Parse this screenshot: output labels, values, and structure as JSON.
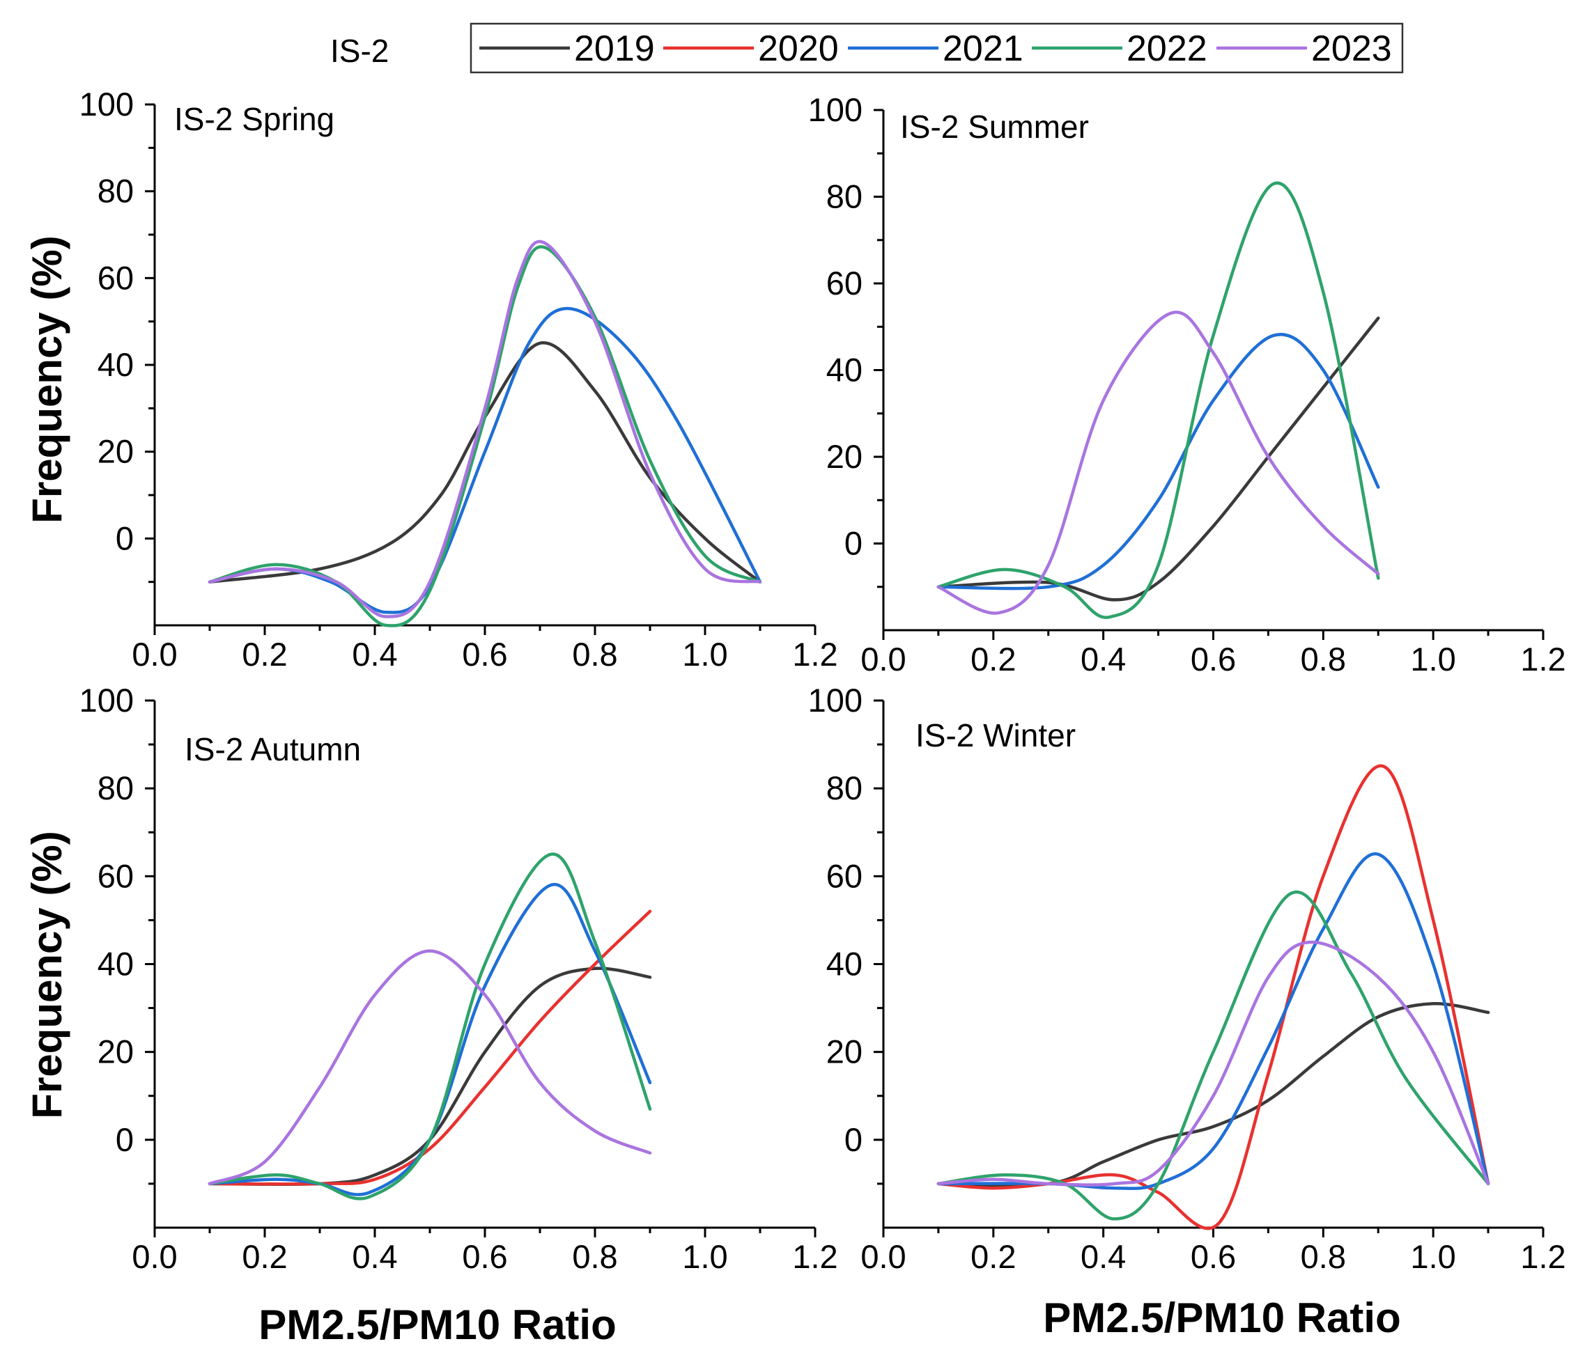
{
  "figure": {
    "station_label": "IS-2",
    "y_axis_title": "Frequency (%)",
    "x_axis_title": "PM2.5/PM10 Ratio"
  },
  "legend": {
    "entries": [
      {
        "label": "2019",
        "color": "#3a3a3a"
      },
      {
        "label": "2020",
        "color": "#e8312f"
      },
      {
        "label": "2021",
        "color": "#1f6fd6"
      },
      {
        "label": "2022",
        "color": "#2ea36b"
      },
      {
        "label": "2023",
        "color": "#a974e0"
      }
    ]
  },
  "chart_data": [
    {
      "type": "line",
      "title": "IS-2 Spring",
      "xlabel": "PM2.5/PM10 Ratio",
      "ylabel": "Frequency (%)",
      "xlim": [
        0.0,
        1.2
      ],
      "ylim": [
        -20,
        100
      ],
      "xticks": [
        "0.0",
        "0.2",
        "0.4",
        "0.6",
        "0.8",
        "1.0",
        "1.2"
      ],
      "yticks": [
        "0",
        "20",
        "40",
        "60",
        "80",
        "100"
      ],
      "series": [
        {
          "name": "2019",
          "x": [
            0.1,
            0.3,
            0.43,
            0.52,
            0.6,
            0.7,
            0.8,
            0.9,
            1.0,
            1.1
          ],
          "y": [
            -10,
            -7,
            -1,
            10,
            28,
            45,
            34,
            14,
            0,
            -10
          ]
        },
        {
          "name": "2021",
          "x": [
            0.1,
            0.22,
            0.32,
            0.42,
            0.5,
            0.6,
            0.68,
            0.75,
            0.85,
            0.95,
            1.1
          ],
          "y": [
            -10,
            -7,
            -10,
            -17,
            -11,
            20,
            45,
            53,
            45,
            27,
            -10
          ]
        },
        {
          "name": "2022",
          "x": [
            0.1,
            0.22,
            0.33,
            0.42,
            0.5,
            0.6,
            0.66,
            0.71,
            0.8,
            0.9,
            1.0,
            1.1
          ],
          "y": [
            -10,
            -6,
            -10,
            -20,
            -12,
            28,
            58,
            67,
            51,
            18,
            -4,
            -10
          ]
        },
        {
          "name": "2023",
          "x": [
            0.1,
            0.22,
            0.33,
            0.42,
            0.5,
            0.6,
            0.66,
            0.71,
            0.8,
            0.9,
            1.0,
            1.1
          ],
          "y": [
            -10,
            -7,
            -10,
            -18,
            -10,
            30,
            60,
            68,
            50,
            15,
            -7,
            -10
          ]
        }
      ]
    },
    {
      "type": "line",
      "title": "IS-2 Summer",
      "xlabel": "PM2.5/PM10 Ratio",
      "ylabel": "Frequency (%)",
      "xlim": [
        0.0,
        1.2
      ],
      "ylim": [
        -20,
        100
      ],
      "xticks": [
        "0.0",
        "0.2",
        "0.4",
        "0.6",
        "0.8",
        "1.0",
        "1.2"
      ],
      "yticks": [
        "0",
        "20",
        "40",
        "60",
        "80",
        "100"
      ],
      "series": [
        {
          "name": "2019",
          "x": [
            0.1,
            0.3,
            0.42,
            0.5,
            0.6,
            0.7,
            0.8,
            0.9
          ],
          "y": [
            -10,
            -9,
            -13,
            -9,
            4,
            20,
            36,
            52
          ]
        },
        {
          "name": "2021",
          "x": [
            0.1,
            0.3,
            0.4,
            0.5,
            0.6,
            0.71,
            0.8,
            0.9
          ],
          "y": [
            -10,
            -10,
            -5,
            10,
            33,
            48,
            40,
            13
          ]
        },
        {
          "name": "2022",
          "x": [
            0.1,
            0.22,
            0.33,
            0.41,
            0.5,
            0.6,
            0.71,
            0.8,
            0.9
          ],
          "y": [
            -10,
            -6,
            -10,
            -17,
            -5,
            48,
            83,
            58,
            -8
          ]
        },
        {
          "name": "2023",
          "x": [
            0.1,
            0.21,
            0.3,
            0.4,
            0.52,
            0.6,
            0.7,
            0.8,
            0.9
          ],
          "y": [
            -10,
            -16,
            -5,
            33,
            53,
            44,
            20,
            4,
            -7
          ]
        }
      ]
    },
    {
      "type": "line",
      "title": "IS-2 Autumn",
      "xlabel": "PM2.5/PM10 Ratio",
      "ylabel": "Frequency (%)",
      "xlim": [
        0.0,
        1.2
      ],
      "ylim": [
        -20,
        100
      ],
      "xticks": [
        "0.0",
        "0.2",
        "0.4",
        "0.6",
        "0.8",
        "1.0",
        "1.2"
      ],
      "yticks": [
        "0",
        "20",
        "40",
        "60",
        "80",
        "100"
      ],
      "series": [
        {
          "name": "2019",
          "x": [
            0.1,
            0.3,
            0.4,
            0.5,
            0.6,
            0.7,
            0.8,
            0.9
          ],
          "y": [
            -10,
            -10,
            -8,
            0,
            20,
            35,
            39,
            37
          ]
        },
        {
          "name": "2020",
          "x": [
            0.1,
            0.3,
            0.4,
            0.5,
            0.6,
            0.7,
            0.8,
            0.9
          ],
          "y": [
            -10,
            -10,
            -9,
            -2,
            12,
            27,
            40,
            52
          ]
        },
        {
          "name": "2021",
          "x": [
            0.1,
            0.22,
            0.3,
            0.39,
            0.5,
            0.6,
            0.72,
            0.8,
            0.9
          ],
          "y": [
            -10,
            -9,
            -10,
            -12,
            0,
            35,
            58,
            43,
            13
          ]
        },
        {
          "name": "2022",
          "x": [
            0.1,
            0.22,
            0.3,
            0.39,
            0.5,
            0.6,
            0.72,
            0.8,
            0.9
          ],
          "y": [
            -10,
            -8,
            -10,
            -13,
            0,
            40,
            65,
            45,
            7
          ]
        },
        {
          "name": "2023",
          "x": [
            0.1,
            0.2,
            0.3,
            0.4,
            0.5,
            0.6,
            0.7,
            0.8,
            0.9
          ],
          "y": [
            -10,
            -5,
            12,
            33,
            43,
            33,
            13,
            2,
            -3
          ]
        }
      ]
    },
    {
      "type": "line",
      "title": "IS-2 Winter",
      "xlabel": "PM2.5/PM10 Ratio",
      "ylabel": "Frequency (%)",
      "xlim": [
        0.0,
        1.2
      ],
      "ylim": [
        -20,
        100
      ],
      "xticks": [
        "0.0",
        "0.2",
        "0.4",
        "0.6",
        "0.8",
        "1.0",
        "1.2"
      ],
      "yticks": [
        "0",
        "20",
        "40",
        "60",
        "80",
        "100"
      ],
      "series": [
        {
          "name": "2019",
          "x": [
            0.1,
            0.3,
            0.4,
            0.5,
            0.6,
            0.7,
            0.8,
            0.9,
            1.0,
            1.1
          ],
          "y": [
            -10,
            -10,
            -5,
            0,
            3,
            9,
            19,
            28,
            31,
            29
          ]
        },
        {
          "name": "2020",
          "x": [
            0.1,
            0.2,
            0.3,
            0.42,
            0.5,
            0.61,
            0.7,
            0.8,
            0.91,
            1.0,
            1.1
          ],
          "y": [
            -10,
            -11,
            -10,
            -8,
            -12,
            -19,
            15,
            60,
            85,
            50,
            -10
          ]
        },
        {
          "name": "2021",
          "x": [
            0.1,
            0.3,
            0.42,
            0.5,
            0.6,
            0.7,
            0.8,
            0.9,
            1.0,
            1.1
          ],
          "y": [
            -10,
            -10,
            -11,
            -10,
            -2,
            21,
            48,
            65,
            40,
            -10
          ]
        },
        {
          "name": "2022",
          "x": [
            0.1,
            0.22,
            0.33,
            0.42,
            0.5,
            0.6,
            0.74,
            0.85,
            0.95,
            1.1
          ],
          "y": [
            -10,
            -8,
            -10,
            -18,
            -10,
            20,
            56,
            38,
            14,
            -10
          ]
        },
        {
          "name": "2023",
          "x": [
            0.1,
            0.2,
            0.3,
            0.42,
            0.5,
            0.6,
            0.7,
            0.78,
            0.9,
            1.0,
            1.1
          ],
          "y": [
            -10,
            -9,
            -10,
            -10,
            -7,
            10,
            37,
            45,
            37,
            20,
            -10
          ]
        }
      ]
    }
  ]
}
